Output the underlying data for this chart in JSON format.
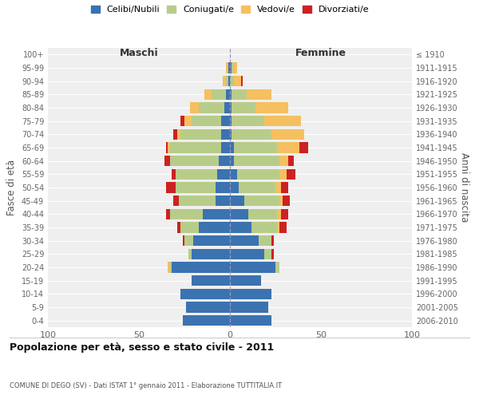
{
  "age_groups": [
    "0-4",
    "5-9",
    "10-14",
    "15-19",
    "20-24",
    "25-29",
    "30-34",
    "35-39",
    "40-44",
    "45-49",
    "50-54",
    "55-59",
    "60-64",
    "65-69",
    "70-74",
    "75-79",
    "80-84",
    "85-89",
    "90-94",
    "95-99",
    "100+"
  ],
  "birth_years": [
    "2006-2010",
    "2001-2005",
    "1996-2000",
    "1991-1995",
    "1986-1990",
    "1981-1985",
    "1976-1980",
    "1971-1975",
    "1966-1970",
    "1961-1965",
    "1956-1960",
    "1951-1955",
    "1946-1950",
    "1941-1945",
    "1936-1940",
    "1931-1935",
    "1926-1930",
    "1921-1925",
    "1916-1920",
    "1911-1915",
    "≤ 1910"
  ],
  "males": {
    "celibi": [
      26,
      24,
      27,
      21,
      32,
      21,
      20,
      17,
      15,
      8,
      8,
      7,
      6,
      5,
      5,
      5,
      3,
      2,
      1,
      1,
      0
    ],
    "coniugati": [
      0,
      0,
      0,
      0,
      1,
      2,
      5,
      10,
      18,
      20,
      22,
      23,
      27,
      28,
      22,
      16,
      14,
      8,
      1,
      0,
      0
    ],
    "vedovi": [
      0,
      0,
      0,
      0,
      1,
      0,
      0,
      0,
      0,
      0,
      0,
      0,
      0,
      1,
      2,
      4,
      5,
      4,
      2,
      1,
      0
    ],
    "divorziati": [
      0,
      0,
      0,
      0,
      0,
      0,
      1,
      2,
      2,
      3,
      5,
      2,
      3,
      1,
      2,
      2,
      0,
      0,
      0,
      0,
      0
    ]
  },
  "females": {
    "nubili": [
      23,
      21,
      23,
      17,
      25,
      19,
      16,
      12,
      10,
      8,
      5,
      4,
      2,
      2,
      1,
      1,
      1,
      1,
      0,
      1,
      0
    ],
    "coniugate": [
      0,
      0,
      0,
      0,
      2,
      4,
      7,
      14,
      16,
      19,
      20,
      23,
      25,
      24,
      22,
      18,
      13,
      8,
      2,
      1,
      0
    ],
    "vedove": [
      0,
      0,
      0,
      0,
      0,
      0,
      0,
      1,
      2,
      2,
      3,
      4,
      5,
      12,
      18,
      20,
      18,
      14,
      4,
      2,
      0
    ],
    "divorziate": [
      0,
      0,
      0,
      0,
      0,
      1,
      1,
      4,
      4,
      4,
      4,
      5,
      3,
      5,
      0,
      0,
      0,
      0,
      1,
      0,
      0
    ]
  },
  "colors": {
    "celibi": "#3b72b0",
    "coniugati": "#b8cc8a",
    "vedovi": "#f5c060",
    "divorziati": "#cc2222"
  },
  "title": "Popolazione per età, sesso e stato civile - 2011",
  "subtitle": "COMUNE DI DEGO (SV) - Dati ISTAT 1° gennaio 2011 - Elaborazione TUTTITALIA.IT",
  "xlabel_left": "Maschi",
  "xlabel_right": "Femmine",
  "ylabel_left": "Fasce di età",
  "ylabel_right": "Anni di nascita",
  "legend_labels": [
    "Celibi/Nubili",
    "Coniugati/e",
    "Vedovi/e",
    "Divorziati/e"
  ],
  "xlim": 100,
  "background_color": "#ffffff",
  "bar_background": "#efefef"
}
